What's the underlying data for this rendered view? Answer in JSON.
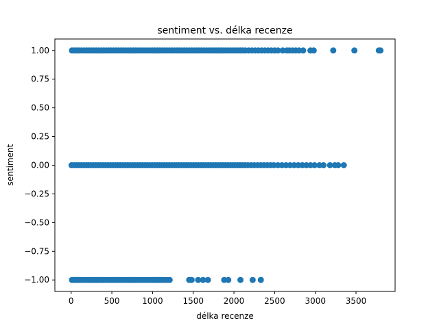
{
  "chart_data": {
    "type": "scatter",
    "title": "sentiment vs. délka recenze",
    "xlabel": "délka recenze",
    "ylabel": "sentiment",
    "xlim": [
      -200,
      3980
    ],
    "ylim": [
      -1.1,
      1.1
    ],
    "xticks": [
      0,
      500,
      1000,
      1500,
      2000,
      2500,
      3000,
      3500
    ],
    "yticks": [
      1.0,
      0.75,
      0.5,
      0.25,
      0.0,
      -0.25,
      -0.5,
      -0.75,
      -1.0
    ],
    "xtick_labels": [
      "0",
      "500",
      "1000",
      "1500",
      "2000",
      "2500",
      "3000",
      "3500"
    ],
    "ytick_labels": [
      "1.00",
      "0.75",
      "0.50",
      "0.25",
      "0.00",
      "−0.25",
      "−0.50",
      "−0.75",
      "−1.00"
    ],
    "color": "#1f77b4",
    "series": [
      {
        "sentiment": 1.0,
        "x": [
          10,
          40,
          70,
          100,
          130,
          160,
          190,
          220,
          250,
          280,
          310,
          340,
          370,
          400,
          430,
          460,
          490,
          520,
          550,
          580,
          610,
          640,
          670,
          700,
          730,
          760,
          790,
          820,
          850,
          880,
          910,
          940,
          970,
          1000,
          1030,
          1060,
          1090,
          1120,
          1150,
          1180,
          1210,
          1240,
          1270,
          1300,
          1330,
          1360,
          1390,
          1420,
          1450,
          1480,
          1510,
          1540,
          1570,
          1600,
          1630,
          1660,
          1690,
          1720,
          1750,
          1780,
          1810,
          1840,
          1870,
          1900,
          1930,
          1960,
          1990,
          2020,
          2050,
          2080,
          2110,
          2140,
          2180,
          2220,
          2260,
          2300,
          2340,
          2380,
          2420,
          2460,
          2500,
          2540,
          2600,
          2650,
          2680,
          2720,
          2760,
          2800,
          2850,
          2940,
          2980,
          3220,
          3480,
          3780,
          3800
        ]
      },
      {
        "sentiment": 0.0,
        "x": [
          5,
          35,
          65,
          95,
          125,
          155,
          185,
          215,
          245,
          275,
          305,
          335,
          365,
          395,
          425,
          455,
          485,
          515,
          545,
          575,
          605,
          635,
          665,
          695,
          725,
          755,
          785,
          815,
          845,
          875,
          905,
          935,
          965,
          995,
          1025,
          1055,
          1085,
          1115,
          1145,
          1175,
          1205,
          1235,
          1265,
          1295,
          1325,
          1355,
          1385,
          1415,
          1445,
          1475,
          1505,
          1535,
          1565,
          1595,
          1625,
          1655,
          1685,
          1715,
          1745,
          1775,
          1805,
          1835,
          1865,
          1895,
          1925,
          1955,
          1985,
          2015,
          2045,
          2075,
          2105,
          2135,
          2170,
          2210,
          2250,
          2290,
          2330,
          2370,
          2410,
          2450,
          2490,
          2540,
          2590,
          2640,
          2690,
          2740,
          2790,
          2840,
          2890,
          2940,
          2990,
          3050,
          3100,
          3180,
          3240,
          3280,
          3350
        ]
      },
      {
        "sentiment": -1.0,
        "x": [
          10,
          40,
          70,
          100,
          130,
          160,
          190,
          220,
          250,
          280,
          310,
          340,
          370,
          400,
          430,
          460,
          490,
          520,
          550,
          580,
          610,
          640,
          670,
          700,
          730,
          760,
          790,
          820,
          850,
          880,
          910,
          940,
          970,
          1000,
          1030,
          1060,
          1090,
          1120,
          1150,
          1180,
          1210,
          1450,
          1480,
          1560,
          1620,
          1680,
          1880,
          1930,
          2080,
          2230,
          2330
        ]
      }
    ]
  }
}
